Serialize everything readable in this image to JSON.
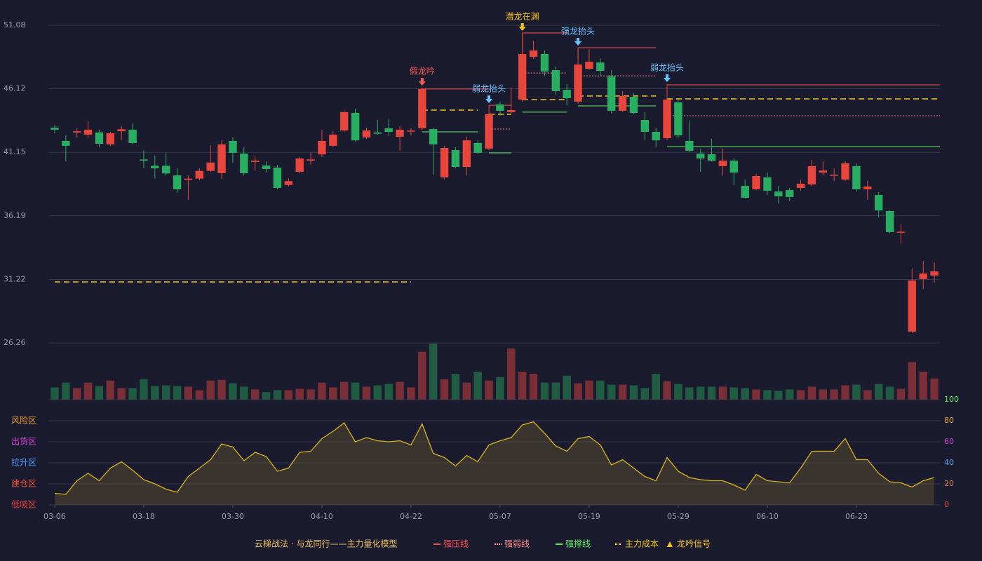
{
  "chart_data": [
    {
      "type": "candlestick",
      "title": "云梯战法 · 与龙同行——主力量化模型",
      "categories": [
        "03-06",
        null,
        null,
        null,
        null,
        null,
        null,
        null,
        "03-18",
        null,
        null,
        null,
        null,
        null,
        null,
        null,
        "03-30",
        null,
        null,
        null,
        null,
        null,
        null,
        null,
        "04-10",
        null,
        null,
        null,
        null,
        null,
        null,
        null,
        "04-22",
        null,
        null,
        null,
        null,
        null,
        null,
        null,
        "05-07",
        null,
        null,
        null,
        null,
        null,
        null,
        null,
        "05-19",
        null,
        null,
        null,
        null,
        null,
        null,
        null,
        "05-29",
        null,
        null,
        null,
        null,
        null,
        null,
        null,
        "06-10",
        null,
        null,
        null,
        null,
        null,
        null,
        null,
        "06-23",
        null,
        null,
        null,
        null,
        null,
        null,
        null
      ],
      "open": [
        43.08,
        42.04,
        42.7,
        42.53,
        42.7,
        41.77,
        42.8,
        42.92,
        40.6,
        40.1,
        40.1,
        39.35,
        39.0,
        39.1,
        39.7,
        39.52,
        42.04,
        41.05,
        40.4,
        40.12,
        39.96,
        38.6,
        39.63,
        40.5,
        40.99,
        41.66,
        42.86,
        44.23,
        42.31,
        42.7,
        43.03,
        42.37,
        42.8,
        43.03,
        42.97,
        39.19,
        41.33,
        40.01,
        41.88,
        41.44,
        44.89,
        44.29,
        45.27,
        48.61,
        48.83,
        47.57,
        46.04,
        45.11,
        47.68,
        48.17,
        47.08,
        44.4,
        45.49,
        43.68,
        42.75,
        42.26,
        45.05,
        42.04,
        41.05,
        41.0,
        40.07,
        40.5,
        38.53,
        38.26,
        39.19,
        38.09,
        38.2,
        38.37,
        38.64,
        39.57,
        39.35,
        39.02,
        40.07,
        38.26,
        37.82,
        36.56,
        34.9,
        27.14,
        31.25,
        31.52
      ],
      "high": [
        43.3,
        42.48,
        43.0,
        43.57,
        42.93,
        42.75,
        43.2,
        43.41,
        41.3,
        40.9,
        41.1,
        39.9,
        39.35,
        39.9,
        41.7,
        42.1,
        42.31,
        41.55,
        40.9,
        40.45,
        40.18,
        39.1,
        40.78,
        41.2,
        42.92,
        42.81,
        44.4,
        44.56,
        43.08,
        43.7,
        43.74,
        43.2,
        43.03,
        46.2,
        43.08,
        41.66,
        41.55,
        42.37,
        42.1,
        44.56,
        45.11,
        46.2,
        48.94,
        49.87,
        49.11,
        47.85,
        46.48,
        48.39,
        49.22,
        48.5,
        47.57,
        45.93,
        45.77,
        44.29,
        43.08,
        46.48,
        45.27,
        43.63,
        41.44,
        42.2,
        41.44,
        40.72,
        39.02,
        39.46,
        39.57,
        38.53,
        38.37,
        39.02,
        40.56,
        40.45,
        39.9,
        40.45,
        40.29,
        38.92,
        38.04,
        36.61,
        35.52,
        32.07,
        32.67,
        32.56
      ],
      "low": [
        42.64,
        40.45,
        42.3,
        42.26,
        41.55,
        41.66,
        42.1,
        41.8,
        39.9,
        39.1,
        39.35,
        38.0,
        37.45,
        38.97,
        39.6,
        39.08,
        40.34,
        39.35,
        39.7,
        39.6,
        38.26,
        38.48,
        39.52,
        40.2,
        40.78,
        41.55,
        42.75,
        41.99,
        42.2,
        42.53,
        42.42,
        41.27,
        42.48,
        42.92,
        39.4,
        39.03,
        39.9,
        39.35,
        41.0,
        41.33,
        44.01,
        44.18,
        45.11,
        48.45,
        47.13,
        45.66,
        44.83,
        44.94,
        47.57,
        47.13,
        44.18,
        44.29,
        44.12,
        42.09,
        41.55,
        42.09,
        42.26,
        41.16,
        39.63,
        40.45,
        39.35,
        38.59,
        37.55,
        38.2,
        37.82,
        37.16,
        37.33,
        38.15,
        38.48,
        39.35,
        38.92,
        38.92,
        38.09,
        37.44,
        36.06,
        34.86,
        34.04,
        27.03,
        30.48,
        30.97
      ],
      "close": [
        42.92,
        41.66,
        42.8,
        42.92,
        41.82,
        42.64,
        42.95,
        41.88,
        40.5,
        39.9,
        39.5,
        38.26,
        39.1,
        39.7,
        40.35,
        41.77,
        41.11,
        39.52,
        40.5,
        39.85,
        38.37,
        38.9,
        40.67,
        40.6,
        42.04,
        42.53,
        44.29,
        42.09,
        42.86,
        42.6,
        42.75,
        42.92,
        42.85,
        46.1,
        41.77,
        41.49,
        40.01,
        42.09,
        41.11,
        44.12,
        44.4,
        44.45,
        48.83,
        49.11,
        47.46,
        45.93,
        45.38,
        48.01,
        48.23,
        47.52,
        44.4,
        45.55,
        44.23,
        42.75,
        42.09,
        45.27,
        42.48,
        41.27,
        40.67,
        40.5,
        40.5,
        39.57,
        37.6,
        39.3,
        38.15,
        37.71,
        37.66,
        38.7,
        40.07,
        39.73,
        39.4,
        40.29,
        38.26,
        38.48,
        36.61,
        34.92,
        34.95,
        31.14,
        31.68,
        31.85
      ],
      "up_color": "#e8453c",
      "down_color": "#27ae60",
      "ylim": [
        26.26,
        51.08
      ],
      "yticks": [
        26.26,
        31.22,
        36.19,
        41.15,
        46.12,
        51.08
      ],
      "grid": true,
      "legend": [
        {
          "name": "强压线",
          "color": "#ff4d4d"
        },
        {
          "name": "强弱线",
          "color": "#ff8a8a"
        },
        {
          "name": "强撑线",
          "color": "#5df05d"
        },
        {
          "name": "主力成本",
          "color": "#f5c518"
        },
        {
          "name": "龙吟信号",
          "color": "#f5c518"
        }
      ],
      "levels": [
        {
          "legend": 3,
          "value": 31.03,
          "start": 0,
          "end": 32
        },
        {
          "legend": 0,
          "value": 46.1,
          "start": 33,
          "end": 39
        },
        {
          "legend": 3,
          "value": 44.45,
          "start": 33,
          "end": 38
        },
        {
          "legend": 2,
          "value": 42.75,
          "start": 33,
          "end": 38
        },
        {
          "legend": 0,
          "value": 44.83,
          "start": 39,
          "end": 41
        },
        {
          "legend": 1,
          "value": 42.97,
          "start": 39,
          "end": 41
        },
        {
          "legend": 3,
          "value": 44.12,
          "start": 39,
          "end": 41
        },
        {
          "legend": 2,
          "value": 41.11,
          "start": 39,
          "end": 41
        },
        {
          "legend": 0,
          "value": 50.48,
          "start": 42,
          "end": 46
        },
        {
          "legend": 1,
          "value": 47.35,
          "start": 42,
          "end": 46
        },
        {
          "legend": 3,
          "value": 45.27,
          "start": 42,
          "end": 46
        },
        {
          "legend": 2,
          "value": 44.29,
          "start": 42,
          "end": 46
        },
        {
          "legend": 0,
          "value": 49.33,
          "start": 47,
          "end": 54
        },
        {
          "legend": 1,
          "value": 47.13,
          "start": 47,
          "end": 54
        },
        {
          "legend": 3,
          "value": 45.55,
          "start": 47,
          "end": 54
        },
        {
          "legend": 2,
          "value": 44.78,
          "start": 47,
          "end": 54
        },
        {
          "legend": 0,
          "value": 46.42,
          "start": 55,
          "end": 79
        },
        {
          "legend": 1,
          "value": 44.01,
          "start": 55,
          "end": 79
        },
        {
          "legend": 3,
          "value": 45.33,
          "start": 55,
          "end": 79
        },
        {
          "legend": 2,
          "value": 41.6,
          "start": 55,
          "end": 79
        }
      ],
      "signals": [
        {
          "label": "假龙吟",
          "index": 33,
          "color": "#ff5a52"
        },
        {
          "label": "弱龙抬头",
          "index": 39,
          "color": "#6cc4ff"
        },
        {
          "label": "潜龙在渊",
          "index": 42,
          "color": "#f5c518"
        },
        {
          "label": "强龙抬头",
          "index": 47,
          "color": "#6cc4ff"
        },
        {
          "label": "弱龙抬头",
          "index": 55,
          "color": "#6cc4ff"
        }
      ]
    },
    {
      "type": "bar",
      "values": [
        18,
        25,
        17,
        25,
        20,
        28,
        17,
        17,
        30,
        20,
        21,
        20,
        19,
        14,
        28,
        29,
        24,
        19,
        15,
        11,
        14,
        14,
        16,
        15,
        25,
        18,
        26,
        25,
        19,
        21,
        23,
        26,
        18,
        70,
        82,
        30,
        38,
        25,
        41,
        28,
        33,
        75,
        41,
        38,
        25,
        25,
        35,
        24,
        28,
        28,
        22,
        22,
        21,
        17,
        38,
        27,
        23,
        18,
        19,
        19,
        19,
        18,
        17,
        15,
        14,
        13,
        15,
        14,
        19,
        15,
        15,
        21,
        22,
        14,
        23,
        19,
        16,
        55,
        41,
        31
      ],
      "up_color": "#7a2f36",
      "down_color": "#1f5c42"
    },
    {
      "type": "line",
      "values": [
        11,
        10,
        23,
        30,
        23,
        35,
        41,
        33,
        24,
        20,
        15,
        12,
        27,
        35,
        43,
        58,
        55,
        42,
        50,
        46,
        32,
        35,
        50,
        51,
        63,
        70,
        78,
        60,
        64,
        61,
        60,
        61,
        57,
        77,
        49,
        45,
        37,
        47,
        41,
        57,
        61,
        64,
        76,
        79,
        68,
        56,
        51,
        63,
        65,
        57,
        38,
        43,
        35,
        27,
        23,
        45,
        32,
        26,
        24,
        23,
        23,
        19,
        14,
        29,
        23,
        22,
        21,
        35,
        51,
        51,
        51,
        63,
        43,
        43,
        30,
        22,
        21,
        17,
        23,
        26
      ],
      "color": "#d9b21e",
      "ylim": [
        0,
        100
      ],
      "yticks": [
        {
          "value": 80,
          "label": "风险区",
          "color": "#f0a030"
        },
        {
          "value": 60,
          "label": "出货区",
          "color": "#e040e0"
        },
        {
          "value": 40,
          "label": "拉升区",
          "color": "#4aa0ff"
        },
        {
          "value": 20,
          "label": "建仓区",
          "color": "#f05040"
        },
        {
          "value": 0,
          "label": "低吸区",
          "color": "#f04040"
        }
      ],
      "y2lim": [
        0,
        100
      ],
      "y2ticks": [
        0,
        20,
        40,
        60,
        80,
        100
      ],
      "y2tick_colors": [
        "#f04040",
        "#f07040",
        "#4aa0ff",
        "#e040e0",
        "#f0a030",
        "#5df05d"
      ]
    }
  ]
}
